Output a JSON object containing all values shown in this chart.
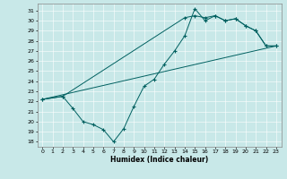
{
  "xlabel": "Humidex (Indice chaleur)",
  "bg_color": "#c8e8e8",
  "line_color": "#006060",
  "xlim": [
    -0.5,
    23.5
  ],
  "ylim": [
    17.5,
    31.7
  ],
  "xticks": [
    0,
    1,
    2,
    3,
    4,
    5,
    6,
    7,
    8,
    9,
    10,
    11,
    12,
    13,
    14,
    15,
    16,
    17,
    18,
    19,
    20,
    21,
    22,
    23
  ],
  "yticks": [
    18,
    19,
    20,
    21,
    22,
    23,
    24,
    25,
    26,
    27,
    28,
    29,
    30,
    31
  ],
  "line1_x": [
    0,
    2,
    3,
    4,
    5,
    6,
    7,
    8,
    9,
    10,
    11,
    12,
    13,
    14,
    15,
    16,
    17,
    18,
    19,
    20,
    21,
    22,
    23
  ],
  "line1_y": [
    22.2,
    22.5,
    21.3,
    20.0,
    19.7,
    19.2,
    18.0,
    19.3,
    21.5,
    23.5,
    24.2,
    25.7,
    27.0,
    28.5,
    31.2,
    30.0,
    30.5,
    30.0,
    30.2,
    29.5,
    29.0,
    27.5,
    27.5
  ],
  "line2_x": [
    0,
    2,
    14,
    15,
    16,
    17,
    18,
    19,
    20,
    21,
    22,
    23
  ],
  "line2_y": [
    22.2,
    22.5,
    30.3,
    30.5,
    30.3,
    30.5,
    30.0,
    30.2,
    29.5,
    29.0,
    27.5,
    27.5
  ],
  "line3_x": [
    0,
    23
  ],
  "line3_y": [
    22.2,
    27.5
  ],
  "xlabel_fontsize": 5.5,
  "xlabel_fontweight": "bold",
  "tick_labelsize": 4.5,
  "linewidth": 0.7,
  "marker": "+",
  "markersize": 2.5
}
